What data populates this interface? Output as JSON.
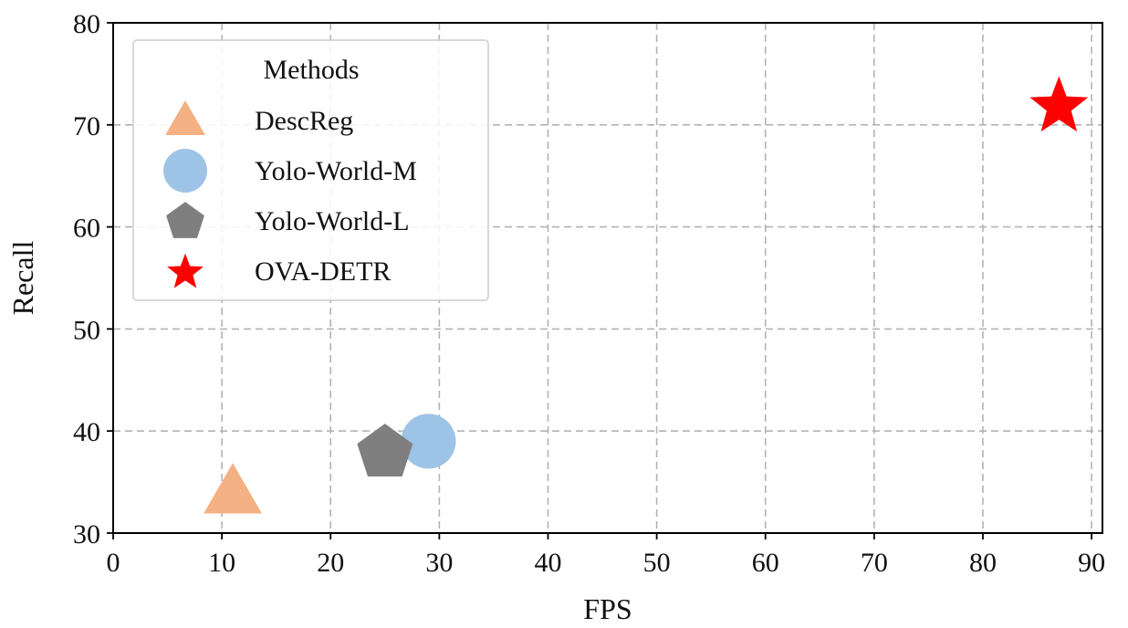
{
  "chart_data": {
    "type": "scatter",
    "xlabel": "FPS",
    "ylabel": "Recall",
    "xlim": [
      0,
      91
    ],
    "ylim": [
      30,
      80
    ],
    "xticks": [
      0,
      10,
      20,
      30,
      40,
      50,
      60,
      70,
      80,
      90
    ],
    "yticks": [
      30,
      40,
      50,
      60,
      70,
      80
    ],
    "grid": true,
    "legend": {
      "title": "Methods",
      "position": "top-left"
    },
    "series": [
      {
        "name": "DescReg",
        "marker": "triangle",
        "color": "#F4B183",
        "x": 11,
        "y": 34
      },
      {
        "name": "Yolo-World-M",
        "marker": "circle",
        "color": "#9DC3E6",
        "x": 29,
        "y": 39
      },
      {
        "name": "Yolo-World-L",
        "marker": "pentagon",
        "color": "#7F7F7F",
        "x": 25,
        "y": 38
      },
      {
        "name": "OVA-DETR",
        "marker": "star",
        "color": "#FF0000",
        "x": 87,
        "y": 72
      }
    ]
  }
}
